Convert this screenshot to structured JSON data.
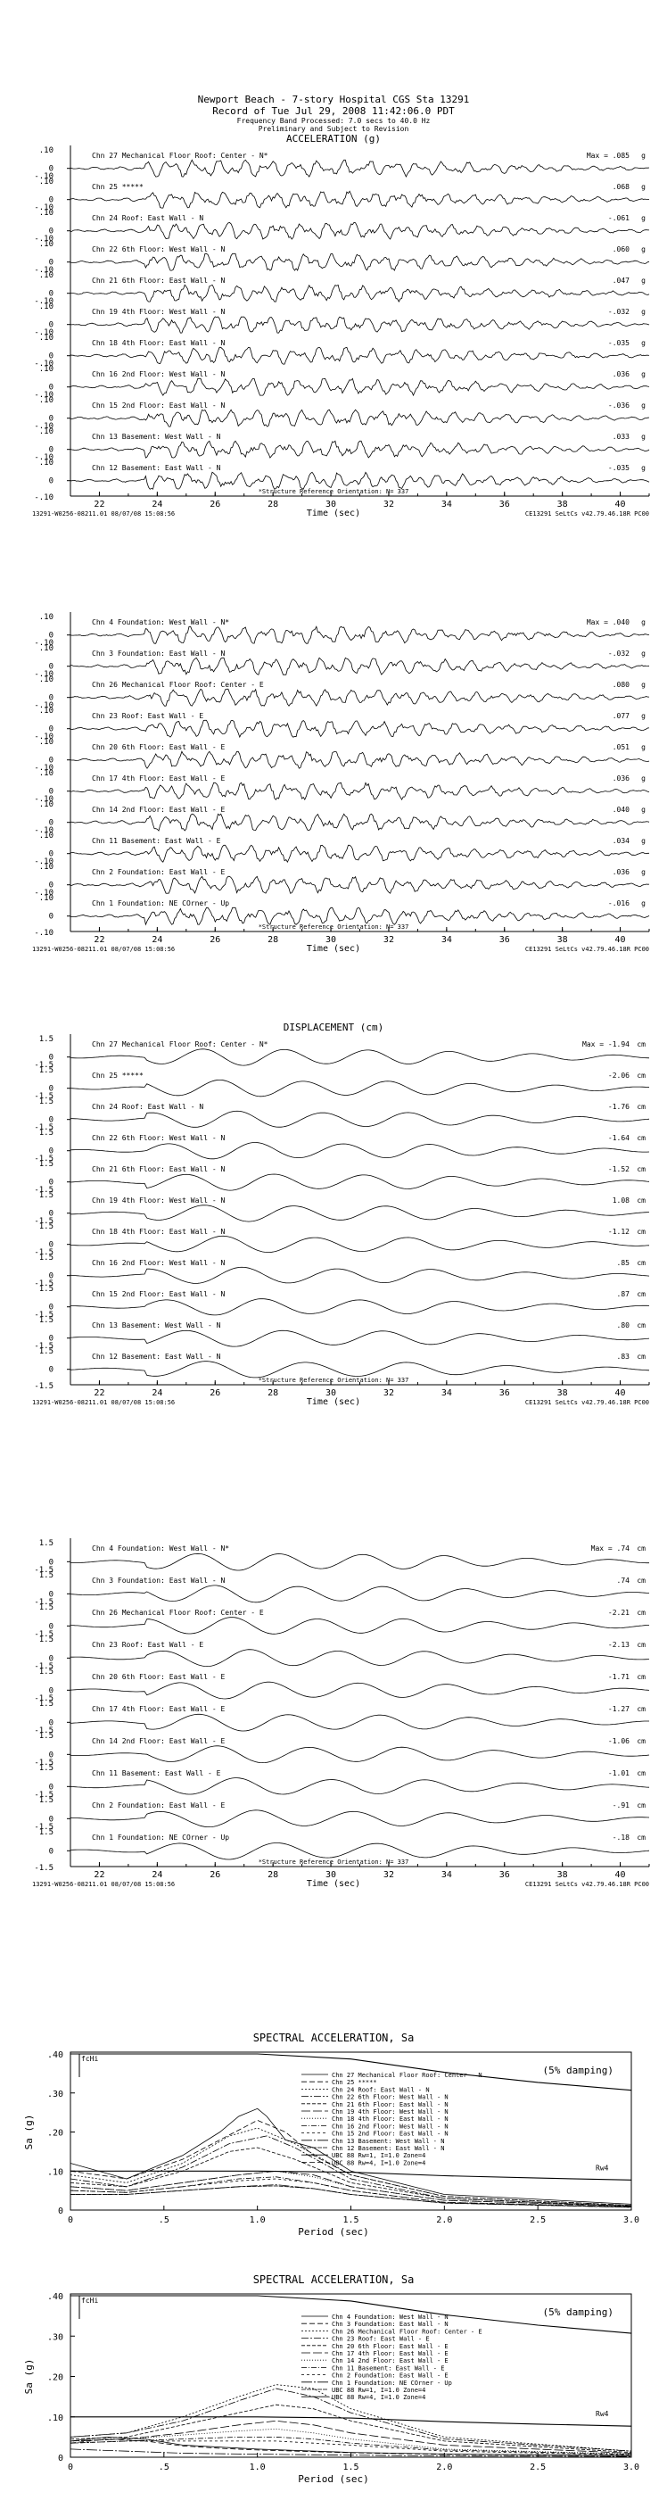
{
  "header": {
    "title": "Newport Beach - 7-story Hospital        CGS Sta 13291",
    "record": "Record of Tue Jul 29, 2008 11:42:06.0 PDT",
    "band": "Frequency Band Processed: 7.0 secs to 40.0 Hz",
    "prelim": "Preliminary and Subject to Revision"
  },
  "footer": {
    "left": "13291-W0256-08211.01 08/07/08 15:08:56",
    "right": "CE13291  SeLtCs  v42.79.46.18R PC00",
    "orientation": "*Structure Reference Orientation: N= 337",
    "xlabel": "Time (sec)"
  },
  "chart_data": [
    {
      "type": "line",
      "title": "ACCELERATION (g)",
      "unit": "g",
      "y_ticks": [
        ".10",
        "0",
        "-.10"
      ],
      "x_ticks": [
        "22",
        "24",
        "26",
        "28",
        "30",
        "32",
        "34",
        "36",
        "38",
        "40"
      ],
      "xlim": [
        21,
        41
      ],
      "series": [
        {
          "name": "Chn 27  Mechanical Floor Roof: Center - N*",
          "peak": "Max =  .085"
        },
        {
          "name": "Chn 25   *****",
          "peak": ".068"
        },
        {
          "name": "Chn 24  Roof: East Wall - N",
          "peak": "-.061"
        },
        {
          "name": "Chn 22  6th Floor: West Wall - N",
          "peak": ".060"
        },
        {
          "name": "Chn 21  6th Floor: East Wall - N",
          "peak": ".047"
        },
        {
          "name": "Chn 19  4th Floor: West Wall - N",
          "peak": "-.032"
        },
        {
          "name": "Chn 18  4th Floor: East Wall - N",
          "peak": "-.035"
        },
        {
          "name": "Chn 16  2nd Floor: West Wall - N",
          "peak": ".036"
        },
        {
          "name": "Chn 15  2nd Floor: East Wall - N",
          "peak": "-.036"
        },
        {
          "name": "Chn 13  Basement: West Wall - N",
          "peak": ".033"
        },
        {
          "name": "Chn 12  Basement: East Wall - N",
          "peak": "-.035"
        }
      ]
    },
    {
      "type": "line",
      "title": "",
      "unit": "g",
      "y_ticks": [
        ".10",
        "0",
        "-.10"
      ],
      "x_ticks": [
        "22",
        "24",
        "26",
        "28",
        "30",
        "32",
        "34",
        "36",
        "38",
        "40"
      ],
      "xlim": [
        21,
        41
      ],
      "series": [
        {
          "name": "Chn 4  Foundation: West Wall - N*",
          "peak": "Max =  .040"
        },
        {
          "name": "Chn 3  Foundation: East Wall - N",
          "peak": "-.032"
        },
        {
          "name": "Chn 26  Mechanical Floor Roof: Center - E",
          "peak": ".080"
        },
        {
          "name": "Chn 23  Roof: East Wall - E",
          "peak": ".077"
        },
        {
          "name": "Chn 20  6th Floor: East Wall - E",
          "peak": ".051"
        },
        {
          "name": "Chn 17  4th Floor: East Wall - E",
          "peak": ".036"
        },
        {
          "name": "Chn 14  2nd Floor: East Wall - E",
          "peak": ".040"
        },
        {
          "name": "Chn 11  Basement: East Wall - E",
          "peak": ".034"
        },
        {
          "name": "Chn 2  Foundation: East Wall - E",
          "peak": ".036"
        },
        {
          "name": "Chn 1  Foundation: NE COrner - Up",
          "peak": "-.016"
        }
      ]
    },
    {
      "type": "line",
      "title": "DISPLACEMENT (cm)",
      "unit": "cm",
      "y_ticks": [
        "1.5",
        "0",
        "-1.5"
      ],
      "x_ticks": [
        "22",
        "24",
        "26",
        "28",
        "30",
        "32",
        "34",
        "36",
        "38",
        "40"
      ],
      "xlim": [
        21,
        41
      ],
      "series": [
        {
          "name": "Chn 27  Mechanical Floor Roof: Center - N*",
          "peak": "Max =  -1.94"
        },
        {
          "name": "Chn 25   *****",
          "peak": "-2.06"
        },
        {
          "name": "Chn 24  Roof: East Wall - N",
          "peak": "-1.76"
        },
        {
          "name": "Chn 22  6th Floor: West Wall - N",
          "peak": "-1.64"
        },
        {
          "name": "Chn 21  6th Floor: East Wall - N",
          "peak": "-1.52"
        },
        {
          "name": "Chn 19  4th Floor: West Wall - N",
          "peak": "1.08"
        },
        {
          "name": "Chn 18  4th Floor: East Wall - N",
          "peak": "-1.12"
        },
        {
          "name": "Chn 16  2nd Floor: West Wall - N",
          "peak": ".85"
        },
        {
          "name": "Chn 15  2nd Floor: East Wall - N",
          "peak": ".87"
        },
        {
          "name": "Chn 13  Basement: West Wall - N",
          "peak": ".80"
        },
        {
          "name": "Chn 12  Basement: East Wall - N",
          "peak": ".83"
        }
      ]
    },
    {
      "type": "line",
      "title": "",
      "unit": "cm",
      "y_ticks": [
        "1.5",
        "0",
        "-1.5"
      ],
      "x_ticks": [
        "22",
        "24",
        "26",
        "28",
        "30",
        "32",
        "34",
        "36",
        "38",
        "40"
      ],
      "xlim": [
        21,
        41
      ],
      "series": [
        {
          "name": "Chn 4  Foundation: West Wall - N*",
          "peak": "Max =  .74"
        },
        {
          "name": "Chn 3  Foundation: East Wall - N",
          "peak": ".74"
        },
        {
          "name": "Chn 26  Mechanical Floor Roof: Center - E",
          "peak": "-2.21"
        },
        {
          "name": "Chn 23  Roof: East Wall - E",
          "peak": "-2.13"
        },
        {
          "name": "Chn 20  6th Floor: East Wall - E",
          "peak": "-1.71"
        },
        {
          "name": "Chn 17  4th Floor: East Wall - E",
          "peak": "-1.27"
        },
        {
          "name": "Chn 14  2nd Floor: East Wall - E",
          "peak": "-1.06"
        },
        {
          "name": "Chn 11  Basement: East Wall - E",
          "peak": "-1.01"
        },
        {
          "name": "Chn 2  Foundation: East Wall - E",
          "peak": "-.91"
        },
        {
          "name": "Chn 1  Foundation: NE COrner - Up",
          "peak": "-.18"
        }
      ]
    },
    {
      "type": "line",
      "title": "SPECTRAL ACCELERATION, Sa",
      "xlabel": "Period (sec)",
      "ylabel": "Sa (g)",
      "damping": "(5% damping)",
      "fchi": "fcHi",
      "x_ticks": [
        "0",
        ".5",
        "1.0",
        "1.5",
        "2.0",
        "2.5",
        "3.0"
      ],
      "y_ticks": [
        ".40",
        ".30",
        ".20",
        ".10",
        "0"
      ],
      "xlim": [
        0,
        3.0
      ],
      "ylim": [
        0,
        0.4
      ],
      "legend": [
        "Chn 27  Mechanical Floor Roof: Center - N",
        "Chn 25   *****",
        "Chn 24  Roof: East Wall - N",
        "Chn 22  6th Floor: West Wall - N",
        "Chn 21  6th Floor: East Wall - N",
        "Chn 19  4th Floor: West Wall - N",
        "Chn 18  4th Floor: East Wall - N",
        "Chn 16  2nd Floor: West Wall - N",
        "Chn 15  2nd Floor: East Wall - N",
        "Chn 13  Basement: West Wall - N",
        "Chn 12  Basement: East Wall - N",
        "UBC 88 Rw=1, I=1.0 Zone=4",
        "UBC 88 Rw=4, I=1.0 Zone=4"
      ],
      "design_label": "Rw4",
      "series": [
        {
          "name": "UBC 88 Rw=1",
          "x": [
            0,
            0.15,
            0.3,
            0.6,
            1.0,
            1.5,
            2.0,
            2.5,
            3.0
          ],
          "y": [
            0.4,
            0.4,
            0.4,
            0.4,
            0.4,
            0.387,
            0.353,
            0.327,
            0.307
          ]
        },
        {
          "name": "UBC 88 Rw=4",
          "x": [
            0,
            0.1,
            0.3,
            0.6,
            1.0,
            1.5,
            2.0,
            2.5,
            3.0
          ],
          "y": [
            0.1,
            0.1,
            0.1,
            0.1,
            0.1,
            0.097,
            0.088,
            0.082,
            0.077
          ]
        },
        {
          "name": "Chn 27",
          "x": [
            0,
            0.3,
            0.6,
            0.8,
            0.9,
            1.0,
            1.05,
            1.15,
            1.3,
            1.5,
            2.0,
            3.0
          ],
          "y": [
            0.12,
            0.08,
            0.14,
            0.2,
            0.24,
            0.26,
            0.24,
            0.18,
            0.16,
            0.1,
            0.04,
            0.015
          ]
        },
        {
          "name": "Chn 25",
          "x": [
            0,
            0.3,
            0.6,
            0.8,
            1.0,
            1.15,
            1.3,
            1.5,
            2.0,
            3.0
          ],
          "y": [
            0.1,
            0.08,
            0.13,
            0.18,
            0.23,
            0.2,
            0.14,
            0.09,
            0.035,
            0.012
          ]
        },
        {
          "name": "Chn 24",
          "x": [
            0,
            0.3,
            0.6,
            0.85,
            1.0,
            1.2,
            1.5,
            2.0,
            3.0
          ],
          "y": [
            0.09,
            0.07,
            0.12,
            0.19,
            0.21,
            0.17,
            0.09,
            0.035,
            0.012
          ]
        },
        {
          "name": "Chn 22",
          "x": [
            0,
            0.3,
            0.6,
            0.85,
            1.05,
            1.2,
            1.5,
            2.0,
            3.0
          ],
          "y": [
            0.08,
            0.06,
            0.11,
            0.17,
            0.19,
            0.16,
            0.08,
            0.03,
            0.01
          ]
        },
        {
          "name": "Chn 21",
          "x": [
            0,
            0.3,
            0.6,
            0.85,
            1.0,
            1.2,
            1.5,
            2.0,
            3.0
          ],
          "y": [
            0.07,
            0.06,
            0.1,
            0.15,
            0.16,
            0.13,
            0.07,
            0.03,
            0.01
          ]
        },
        {
          "name": "Chn 19",
          "x": [
            0,
            0.3,
            0.6,
            0.9,
            1.1,
            1.3,
            1.5,
            2.0,
            3.0
          ],
          "y": [
            0.06,
            0.05,
            0.07,
            0.09,
            0.1,
            0.09,
            0.06,
            0.025,
            0.01
          ]
        },
        {
          "name": "Chn 18",
          "x": [
            0,
            0.3,
            0.6,
            0.9,
            1.1,
            1.3,
            1.5,
            2.0,
            3.0
          ],
          "y": [
            0.06,
            0.05,
            0.07,
            0.09,
            0.1,
            0.085,
            0.06,
            0.025,
            0.01
          ]
        },
        {
          "name": "Chn 16",
          "x": [
            0,
            0.3,
            0.6,
            0.9,
            1.1,
            1.3,
            1.5,
            2.0,
            3.0
          ],
          "y": [
            0.05,
            0.045,
            0.06,
            0.08,
            0.085,
            0.07,
            0.05,
            0.02,
            0.008
          ]
        },
        {
          "name": "Chn 15",
          "x": [
            0,
            0.3,
            0.6,
            0.9,
            1.1,
            1.3,
            1.5,
            2.0,
            3.0
          ],
          "y": [
            0.05,
            0.045,
            0.06,
            0.075,
            0.08,
            0.07,
            0.05,
            0.02,
            0.008
          ]
        },
        {
          "name": "Chn 13",
          "x": [
            0,
            0.3,
            0.6,
            0.9,
            1.1,
            1.3,
            1.5,
            2.0,
            3.0
          ],
          "y": [
            0.04,
            0.04,
            0.05,
            0.06,
            0.065,
            0.055,
            0.04,
            0.018,
            0.007
          ]
        },
        {
          "name": "Chn 12",
          "x": [
            0,
            0.3,
            0.6,
            0.9,
            1.1,
            1.3,
            1.5,
            2.0,
            3.0
          ],
          "y": [
            0.04,
            0.04,
            0.05,
            0.06,
            0.062,
            0.055,
            0.04,
            0.018,
            0.007
          ]
        }
      ]
    },
    {
      "type": "line",
      "title": "SPECTRAL ACCELERATION, Sa",
      "xlabel": "Period (sec)",
      "ylabel": "Sa (g)",
      "damping": "(5% damping)",
      "fchi": "fcHi",
      "x_ticks": [
        "0",
        ".5",
        "1.0",
        "1.5",
        "2.0",
        "2.5",
        "3.0"
      ],
      "y_ticks": [
        ".40",
        ".30",
        ".20",
        ".10",
        "0"
      ],
      "xlim": [
        0,
        3.0
      ],
      "ylim": [
        0,
        0.4
      ],
      "legend": [
        "Chn 4  Foundation: West Wall - N",
        "Chn 3  Foundation: East Wall - N",
        "Chn 26  Mechanical Floor Roof: Center - E",
        "Chn 23  Roof: East Wall - E",
        "Chn 20  6th Floor: East Wall - E",
        "Chn 17  4th Floor: East Wall - E",
        "Chn 14  2nd Floor: East Wall - E",
        "Chn 11  Basement: East Wall - E",
        "Chn 2  Foundation: East Wall - E",
        "Chn 1  Foundation: NE COrner - Up",
        "UBC 88 Rw=1, I=1.0 Zone=4",
        "UBC 88 Rw=4, I=1.0 Zone=4"
      ],
      "design_label": "Rw4",
      "series": [
        {
          "name": "UBC 88 Rw=1",
          "x": [
            0,
            0.15,
            0.3,
            0.6,
            1.0,
            1.5,
            2.0,
            2.5,
            3.0
          ],
          "y": [
            0.4,
            0.4,
            0.4,
            0.4,
            0.4,
            0.387,
            0.353,
            0.327,
            0.307
          ]
        },
        {
          "name": "UBC 88 Rw=4",
          "x": [
            0,
            0.1,
            0.3,
            0.6,
            1.0,
            1.5,
            2.0,
            2.5,
            3.0
          ],
          "y": [
            0.1,
            0.1,
            0.1,
            0.1,
            0.1,
            0.097,
            0.088,
            0.082,
            0.077
          ]
        },
        {
          "name": "Chn 4",
          "x": [
            0,
            0.2,
            0.4,
            0.6,
            0.8,
            1.0,
            1.5,
            2.0,
            3.0
          ],
          "y": [
            0.04,
            0.05,
            0.045,
            0.03,
            0.025,
            0.02,
            0.012,
            0.008,
            0.004
          ]
        },
        {
          "name": "Chn 3",
          "x": [
            0,
            0.2,
            0.4,
            0.6,
            0.8,
            1.0,
            1.5,
            2.0,
            3.0
          ],
          "y": [
            0.035,
            0.045,
            0.04,
            0.028,
            0.022,
            0.018,
            0.011,
            0.007,
            0.004
          ]
        },
        {
          "name": "Chn 26",
          "x": [
            0,
            0.3,
            0.6,
            0.9,
            1.1,
            1.3,
            1.5,
            2.0,
            3.0
          ],
          "y": [
            0.05,
            0.06,
            0.1,
            0.15,
            0.18,
            0.17,
            0.12,
            0.05,
            0.015
          ]
        },
        {
          "name": "Chn 23",
          "x": [
            0,
            0.3,
            0.6,
            0.9,
            1.1,
            1.3,
            1.5,
            2.0,
            3.0
          ],
          "y": [
            0.05,
            0.06,
            0.09,
            0.14,
            0.17,
            0.15,
            0.11,
            0.045,
            0.015
          ]
        },
        {
          "name": "Chn 20",
          "x": [
            0,
            0.3,
            0.6,
            0.9,
            1.1,
            1.3,
            1.5,
            2.0,
            3.0
          ],
          "y": [
            0.045,
            0.05,
            0.08,
            0.11,
            0.13,
            0.12,
            0.09,
            0.04,
            0.012
          ]
        },
        {
          "name": "Chn 17",
          "x": [
            0,
            0.3,
            0.6,
            0.9,
            1.1,
            1.3,
            1.5,
            2.0,
            3.0
          ],
          "y": [
            0.04,
            0.045,
            0.06,
            0.08,
            0.09,
            0.08,
            0.06,
            0.03,
            0.01
          ]
        },
        {
          "name": "Chn 14",
          "x": [
            0,
            0.3,
            0.6,
            0.9,
            1.1,
            1.3,
            1.5,
            2.0,
            3.0
          ],
          "y": [
            0.04,
            0.045,
            0.055,
            0.065,
            0.07,
            0.06,
            0.045,
            0.02,
            0.008
          ]
        },
        {
          "name": "Chn 11",
          "x": [
            0,
            0.3,
            0.6,
            0.9,
            1.1,
            1.3,
            1.5,
            2.0,
            3.0
          ],
          "y": [
            0.035,
            0.04,
            0.045,
            0.05,
            0.05,
            0.045,
            0.035,
            0.018,
            0.007
          ]
        },
        {
          "name": "Chn 2",
          "x": [
            0,
            0.3,
            0.6,
            0.9,
            1.1,
            1.3,
            1.5,
            2.0,
            3.0
          ],
          "y": [
            0.035,
            0.04,
            0.04,
            0.04,
            0.04,
            0.035,
            0.03,
            0.015,
            0.006
          ]
        },
        {
          "name": "Chn 1",
          "x": [
            0,
            0.3,
            0.6,
            0.9,
            1.1,
            1.3,
            1.5,
            2.0,
            3.0
          ],
          "y": [
            0.02,
            0.015,
            0.01,
            0.008,
            0.007,
            0.006,
            0.005,
            0.003,
            0.002
          ]
        }
      ]
    }
  ]
}
